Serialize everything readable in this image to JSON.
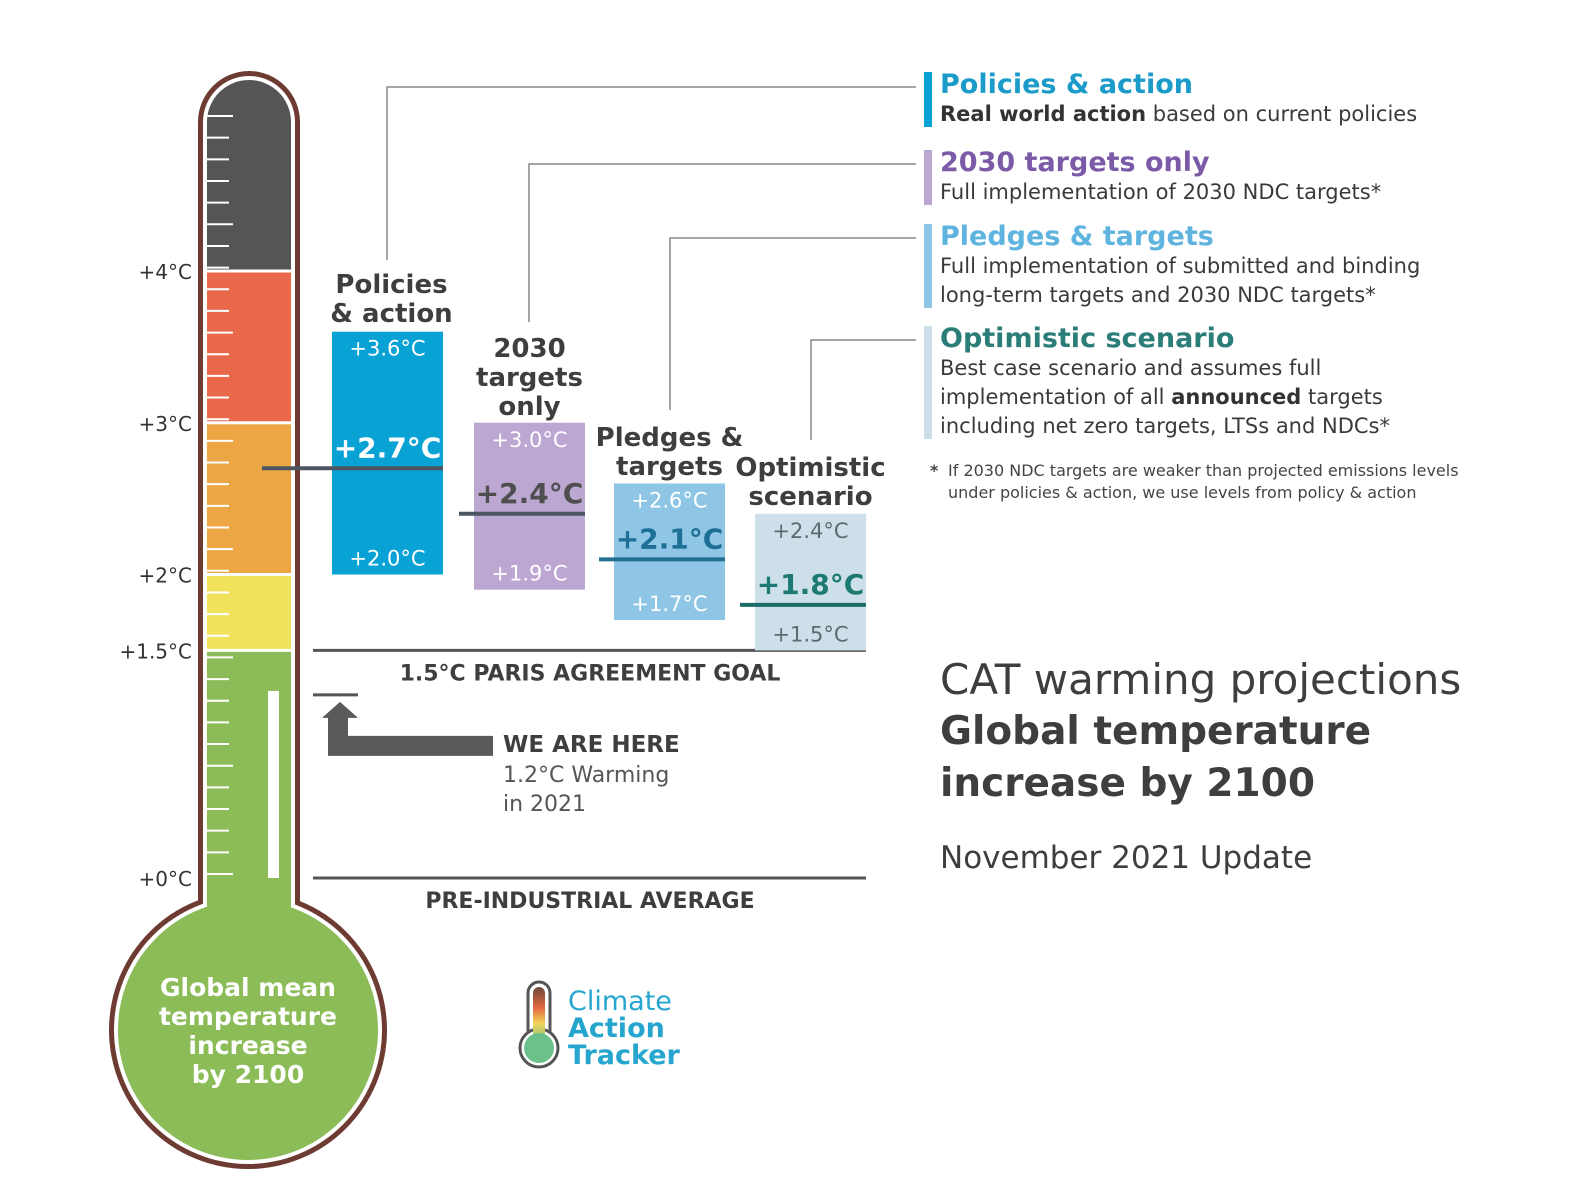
{
  "chart_data": {
    "type": "range-bar",
    "axis": {
      "ticks": [
        {
          "value": 0,
          "label": "+0°C"
        },
        {
          "value": 1.5,
          "label": "+1.5°C"
        },
        {
          "value": 2,
          "label": "+2°C"
        },
        {
          "value": 3,
          "label": "+3°C"
        },
        {
          "value": 4,
          "label": "+4°C"
        }
      ]
    },
    "thermometer": {
      "label_lines": [
        "Global mean",
        "temperature",
        "increase",
        "by 2100"
      ],
      "bands": [
        {
          "from": 0,
          "to": 1.5,
          "color": "#8cbc58"
        },
        {
          "from": 1.5,
          "to": 2.0,
          "color": "#f1e25c"
        },
        {
          "from": 2.0,
          "to": 3.0,
          "color": "#eda644"
        },
        {
          "from": 3.0,
          "to": 4.0,
          "color": "#e9684a"
        },
        {
          "from": 4.0,
          "to": 5.0,
          "color": "#555555"
        }
      ],
      "current_level": 1.2,
      "frame_color": "#6e3b32"
    },
    "scenarios": [
      {
        "label_lines": [
          "Policies",
          "& action"
        ],
        "low": 2.0,
        "central": 2.7,
        "high": 3.6,
        "low_label": "+2.0°C",
        "central_label": "+2.7°C",
        "high_label": "+3.6°C",
        "color": "#09a2d4",
        "text_color": "#ffffff",
        "central_color": "#ffffff"
      },
      {
        "label_lines": [
          "2030",
          "targets",
          "only"
        ],
        "low": 1.9,
        "central": 2.4,
        "high": 3.0,
        "low_label": "+1.9°C",
        "central_label": "+2.4°C",
        "high_label": "+3.0°C",
        "color": "#bca6d2",
        "text_color": "#ffffff",
        "central_color": "#4e4e4e"
      },
      {
        "label_lines": [
          "Pledges &",
          "targets"
        ],
        "low": 1.7,
        "central": 2.1,
        "high": 2.6,
        "low_label": "+1.7°C",
        "central_label": "+2.1°C",
        "high_label": "+2.6°C",
        "color": "#8fc6e6",
        "text_color": "#ffffff",
        "central_color": "#1d6f95"
      },
      {
        "label_lines": [
          "Optimistic",
          "scenario"
        ],
        "low": 1.5,
        "central": 1.8,
        "high": 2.4,
        "low_label": "+1.5°C",
        "central_label": "+1.8°C",
        "high_label": "+2.4°C",
        "color": "#cde0e9",
        "text_color": "#5a6b73",
        "central_color": "#1c7a72"
      }
    ],
    "reference_lines": [
      {
        "value": 1.5,
        "label": "1.5°C PARIS AGREEMENT GOAL"
      },
      {
        "value": 0,
        "label": "PRE-INDUSTRIAL AVERAGE"
      }
    ],
    "annotation": {
      "value": 1.2,
      "title": "WE ARE HERE",
      "lines": [
        "1.2°C Warming",
        "in 2021"
      ]
    }
  },
  "legend": [
    {
      "title": "Policies & action",
      "title_color": "#1b9bc9",
      "bar_color": "#09a2d4",
      "lines": [
        [
          {
            "t": "Real world action",
            "b": true
          },
          {
            "t": " based on current policies"
          }
        ]
      ]
    },
    {
      "title": "2030 targets only",
      "title_color": "#7b5ba8",
      "bar_color": "#bca6d2",
      "lines": [
        [
          {
            "t": "Full implementation of 2030 NDC targets*"
          }
        ]
      ]
    },
    {
      "title": "Pledges & targets",
      "title_color": "#5fb3df",
      "bar_color": "#8fc6e6",
      "lines": [
        [
          {
            "t": "Full implementation of submitted and binding"
          }
        ],
        [
          {
            "t": "long-term targets and 2030 NDC targets*"
          }
        ]
      ]
    },
    {
      "title": "Optimistic scenario",
      "title_color": "#2b7d78",
      "bar_color": "#cde0e9",
      "lines": [
        [
          {
            "t": "Best case scenario and assumes full"
          }
        ],
        [
          {
            "t": "implementation of all "
          },
          {
            "t": "announced",
            "b": true
          },
          {
            "t": " targets"
          }
        ],
        [
          {
            "t": "including net zero targets, LTSs and NDCs*"
          }
        ]
      ]
    }
  ],
  "footnote": {
    "star": "*",
    "lines": [
      "If 2030 NDC targets are weaker than projected emissions levels",
      "under policies & action, we use levels from policy & action"
    ]
  },
  "side_title": {
    "line1": "CAT warming projections",
    "line2": "Global temperature",
    "line3": "increase by 2100",
    "update": "November 2021 Update"
  },
  "logo": {
    "lines": [
      "Climate",
      "Action",
      "Tracker"
    ],
    "color": "#26a6cf"
  }
}
